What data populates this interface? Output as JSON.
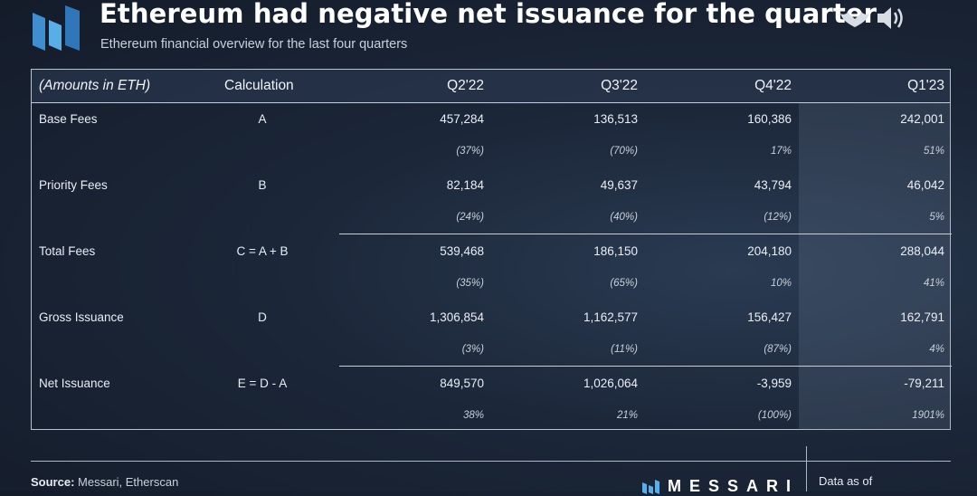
{
  "title": "Ethereum had negative net issuance for the quarter",
  "subtitle": "Ethereum financial overview for the last four quarters",
  "icons": [
    "bat-icon",
    "speaker-icon"
  ],
  "colors": {
    "background": "#1b2638",
    "brand": "#4fa3e0",
    "text": "#ffffff"
  },
  "chart_data": {
    "type": "table",
    "columns": [
      "(Amounts in ETH)",
      "Calculation",
      "Q2'22",
      "Q3'22",
      "Q4'22",
      "Q1'23"
    ],
    "rows": [
      {
        "label": "Base Fees",
        "calc": "A",
        "values": [
          "457,284",
          "136,513",
          "160,386",
          "242,001"
        ],
        "changes": [
          "(37%)",
          "(70%)",
          "17%",
          "51%"
        ]
      },
      {
        "label": "Priority Fees",
        "calc": "B",
        "values": [
          "82,184",
          "49,637",
          "43,794",
          "46,042"
        ],
        "changes": [
          "(24%)",
          "(40%)",
          "(12%)",
          "5%"
        ]
      },
      {
        "label": "Total Fees",
        "calc": "C = A + B",
        "values": [
          "539,468",
          "186,150",
          "204,180",
          "288,044"
        ],
        "changes": [
          "(35%)",
          "(65%)",
          "10%",
          "41%"
        ]
      },
      {
        "label": "Gross Issuance",
        "calc": "D",
        "values": [
          "1,306,854",
          "1,162,577",
          "156,427",
          "162,791"
        ],
        "changes": [
          "(3%)",
          "(11%)",
          "(87%)",
          "4%"
        ]
      },
      {
        "label": "Net Issuance",
        "calc": "E = D - A",
        "values": [
          "849,570",
          "1,026,064",
          "-3,959",
          "-79,211"
        ],
        "changes": [
          "38%",
          "21%",
          "(100%)",
          "1901%"
        ]
      }
    ]
  },
  "footer": {
    "source_label": "Source:",
    "source_text": "Messari, Etherscan",
    "brand": "MESSARI",
    "data_as_of": "Data as of"
  }
}
